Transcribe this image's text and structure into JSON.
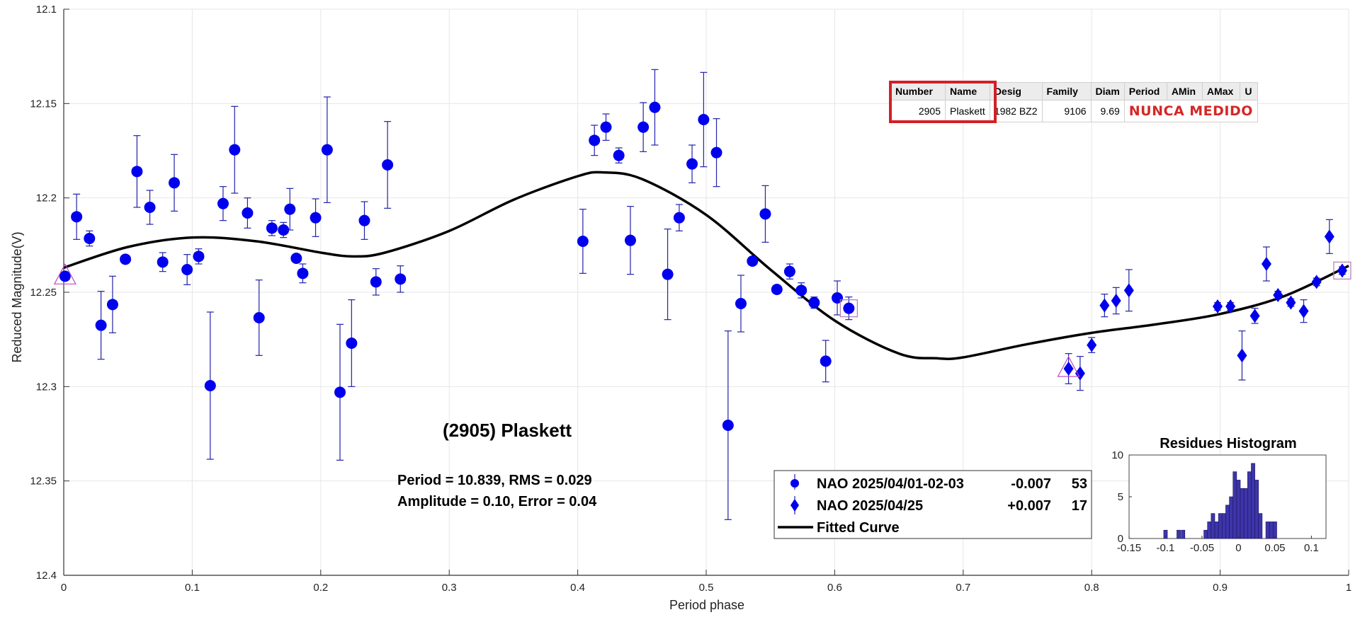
{
  "chart_data": {
    "type": "scatter",
    "title": "(2905) Plaskett",
    "stats_line1": "Period =  10.839, RMS = 0.029",
    "stats_line2": "Amplitude = 0.10, Error = 0.04",
    "xlabel": "Period phase",
    "ylabel": "Reduced Magnitude(V)",
    "xlim": [
      0,
      1
    ],
    "ylim": [
      12.4,
      12.1
    ],
    "y_reversed": true,
    "grid": true,
    "x_ticks": [
      "0",
      "0.1",
      "0.2",
      "0.3",
      "0.4",
      "0.5",
      "0.6",
      "0.7",
      "0.8",
      "0.9",
      "1"
    ],
    "y_ticks": [
      "12.1",
      "12.15",
      "12.2",
      "12.25",
      "12.3",
      "12.35",
      "12.4"
    ],
    "legend_position": "bottom-center",
    "series": [
      {
        "name": "NAO 2025/04/01-02-03",
        "marker": "circle",
        "color": "#0000ee",
        "offset": "-0.007",
        "count": "53",
        "points": [
          [
            0.001,
            12.2415,
            0
          ],
          [
            0.01,
            12.21,
            0.012
          ],
          [
            0.02,
            12.2215,
            0.004
          ],
          [
            0.029,
            12.2675,
            0.018
          ],
          [
            0.038,
            12.2565,
            0.015
          ],
          [
            0.048,
            12.2325,
            0.002
          ],
          [
            0.057,
            12.186,
            0.019
          ],
          [
            0.067,
            12.205,
            0.009
          ],
          [
            0.077,
            12.234,
            0.005
          ],
          [
            0.086,
            12.192,
            0.015
          ],
          [
            0.096,
            12.238,
            0.008
          ],
          [
            0.105,
            12.231,
            0.004
          ],
          [
            0.114,
            12.2995,
            0.039
          ],
          [
            0.124,
            12.203,
            0.009
          ],
          [
            0.133,
            12.1745,
            0.023
          ],
          [
            0.143,
            12.208,
            0.008
          ],
          [
            0.152,
            12.2635,
            0.02
          ],
          [
            0.162,
            12.216,
            0.004
          ],
          [
            0.171,
            12.217,
            0.004
          ],
          [
            0.176,
            12.206,
            0.011
          ],
          [
            0.181,
            12.232,
            0.002
          ],
          [
            0.186,
            12.24,
            0.005
          ],
          [
            0.196,
            12.2105,
            0.01
          ],
          [
            0.205,
            12.1745,
            0.028
          ],
          [
            0.215,
            12.303,
            0.036
          ],
          [
            0.224,
            12.277,
            0.023
          ],
          [
            0.234,
            12.212,
            0.01
          ],
          [
            0.243,
            12.2445,
            0.007
          ],
          [
            0.252,
            12.1825,
            0.023
          ],
          [
            0.262,
            12.243,
            0.007
          ],
          [
            0.404,
            12.223,
            0.017
          ],
          [
            0.413,
            12.1695,
            0.008
          ],
          [
            0.422,
            12.1625,
            0.007
          ],
          [
            0.432,
            12.1775,
            0.004
          ],
          [
            0.441,
            12.2225,
            0.018
          ],
          [
            0.451,
            12.1625,
            0.013
          ],
          [
            0.46,
            12.152,
            0.02
          ],
          [
            0.47,
            12.2405,
            0.024
          ],
          [
            0.479,
            12.2105,
            0.007
          ],
          [
            0.489,
            12.182,
            0.01
          ],
          [
            0.498,
            12.1585,
            0.025
          ],
          [
            0.508,
            12.176,
            0.018
          ],
          [
            0.517,
            12.3205,
            0.05
          ],
          [
            0.527,
            12.256,
            0.015
          ],
          [
            0.536,
            12.2335,
            0.002
          ],
          [
            0.546,
            12.2085,
            0.015
          ],
          [
            0.555,
            12.2485,
            0.002
          ],
          [
            0.565,
            12.239,
            0.004
          ],
          [
            0.574,
            12.249,
            0.004
          ],
          [
            0.584,
            12.2555,
            0.003
          ],
          [
            0.593,
            12.2865,
            0.011
          ],
          [
            0.602,
            12.253,
            0.009
          ],
          [
            0.611,
            12.2585,
            0.006
          ]
        ]
      },
      {
        "name": "NAO 2025/04/25",
        "marker": "diamond",
        "color": "#0000ee",
        "offset": "+0.007",
        "count": "17",
        "points": [
          [
            0.782,
            12.2905,
            0.008
          ],
          [
            0.791,
            12.293,
            0.009
          ],
          [
            0.8,
            12.278,
            0.004
          ],
          [
            0.81,
            12.257,
            0.006
          ],
          [
            0.819,
            12.2545,
            0.007
          ],
          [
            0.829,
            12.249,
            0.011
          ],
          [
            0.898,
            12.2575,
            0.002
          ],
          [
            0.908,
            12.2575,
            0.002
          ],
          [
            0.917,
            12.2835,
            0.013
          ],
          [
            0.927,
            12.2625,
            0.004
          ],
          [
            0.936,
            12.235,
            0.009
          ],
          [
            0.945,
            12.2515,
            0.002
          ],
          [
            0.955,
            12.2555,
            0.002
          ],
          [
            0.965,
            12.26,
            0.006
          ],
          [
            0.975,
            12.2445,
            0.002
          ],
          [
            0.985,
            12.2205,
            0.009
          ],
          [
            0.995,
            12.2385,
            0.002
          ]
        ]
      }
    ],
    "fitted_curve": {
      "name": "Fitted Curve",
      "points": [
        [
          0.0,
          12.237
        ],
        [
          0.05,
          12.226
        ],
        [
          0.1,
          12.221
        ],
        [
          0.15,
          12.223
        ],
        [
          0.2,
          12.229
        ],
        [
          0.225,
          12.231
        ],
        [
          0.25,
          12.229
        ],
        [
          0.3,
          12.2175
        ],
        [
          0.35,
          12.201
        ],
        [
          0.4,
          12.1885
        ],
        [
          0.42,
          12.1865
        ],
        [
          0.45,
          12.19
        ],
        [
          0.5,
          12.209
        ],
        [
          0.55,
          12.238
        ],
        [
          0.6,
          12.265
        ],
        [
          0.65,
          12.2825
        ],
        [
          0.68,
          12.285
        ],
        [
          0.7,
          12.2845
        ],
        [
          0.75,
          12.2775
        ],
        [
          0.8,
          12.2715
        ],
        [
          0.85,
          12.267
        ],
        [
          0.9,
          12.2615
        ],
        [
          0.95,
          12.252
        ],
        [
          1.0,
          12.236
        ]
      ]
    },
    "mark_open": [
      {
        "x": 0.001,
        "y": 12.2415,
        "shape": "triangle"
      },
      {
        "x": 0.611,
        "y": 12.2585,
        "shape": "square"
      },
      {
        "x": 0.782,
        "y": 12.2905,
        "shape": "triangle"
      },
      {
        "x": 0.995,
        "y": 12.2385,
        "shape": "square"
      }
    ],
    "legend_fitted_label": "Fitted Curve",
    "histogram": {
      "type": "bar",
      "title": "Residues Histogram",
      "xlim": [
        -0.15,
        0.12
      ],
      "ylim": [
        0,
        10
      ],
      "x_ticks": [
        "-0.15",
        "-0.1",
        "-0.05",
        "0",
        "0.05",
        "0.1"
      ],
      "y_ticks": [
        "0",
        "5",
        "10"
      ],
      "color": "#3d35a8",
      "bins": [
        [
          -0.1,
          1
        ],
        [
          -0.082,
          1
        ],
        [
          -0.076,
          1
        ],
        [
          -0.045,
          1
        ],
        [
          -0.04,
          2
        ],
        [
          -0.035,
          3
        ],
        [
          -0.03,
          2
        ],
        [
          -0.025,
          3
        ],
        [
          -0.02,
          3
        ],
        [
          -0.015,
          4
        ],
        [
          -0.01,
          5
        ],
        [
          -0.005,
          8
        ],
        [
          0.0,
          7
        ],
        [
          0.005,
          6
        ],
        [
          0.01,
          6
        ],
        [
          0.015,
          8
        ],
        [
          0.02,
          9
        ],
        [
          0.025,
          7
        ],
        [
          0.03,
          3
        ],
        [
          0.04,
          2
        ],
        [
          0.045,
          2
        ],
        [
          0.05,
          2
        ]
      ]
    }
  },
  "info_table": {
    "headers": [
      "Number",
      "Name",
      "Desig",
      "Family",
      "Diam",
      "Period",
      "AMin",
      "AMax",
      "U"
    ],
    "number": "2905",
    "name": "Plaskett",
    "desig": "1982 BZ2",
    "family": "9106",
    "diam": "9.69",
    "note": "NUNCA MEDIDO",
    "note_color": "#d42828",
    "highlight_color": "#d22026"
  }
}
